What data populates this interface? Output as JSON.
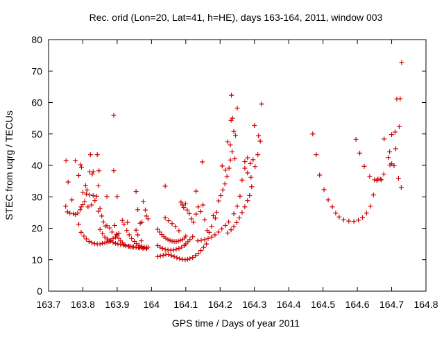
{
  "chart_data": {
    "type": "scatter",
    "title": "Rec. orid (Lon=20, Lat=41, h=HE), days 163-164, 2011, window 003",
    "xlabel": "GPS time / Days of year 2011",
    "ylabel": "STEC from uqrg / TECUs",
    "xlim": [
      163.7,
      164.8
    ],
    "ylim": [
      0,
      80
    ],
    "xticks": [
      163.7,
      163.8,
      163.9,
      164.0,
      164.1,
      164.2,
      164.3,
      164.4,
      164.5,
      164.6,
      164.7,
      164.8
    ],
    "xtick_labels": [
      "163.7",
      "163.8",
      "163.9",
      "164",
      "164.1",
      "164.2",
      "164.3",
      "164.4",
      "164.5",
      "164.6",
      "164.7",
      "164.8"
    ],
    "yticks": [
      0,
      10,
      20,
      30,
      40,
      50,
      60,
      70,
      80
    ],
    "ytick_labels": [
      "0",
      "10",
      "20",
      "30",
      "40",
      "50",
      "60",
      "70",
      "80"
    ],
    "grid": false,
    "legend": "none",
    "marker": "plus",
    "series": [
      {
        "color": "#cc0000",
        "points": [
          [
            163.751,
            41.5
          ],
          [
            163.757,
            34.7
          ],
          [
            163.768,
            29.0
          ],
          [
            163.778,
            41.5
          ],
          [
            163.788,
            36.8
          ],
          [
            163.793,
            40.2
          ],
          [
            163.796,
            39.4
          ],
          [
            163.8,
            31.4
          ],
          [
            163.808,
            33.6
          ],
          [
            163.812,
            32.2
          ],
          [
            163.82,
            38.0
          ],
          [
            163.822,
            43.4
          ],
          [
            163.827,
            37.2
          ],
          [
            163.83,
            38.0
          ],
          [
            163.842,
            43.4
          ],
          [
            163.845,
            33.5
          ],
          [
            163.847,
            38.3
          ],
          [
            163.87,
            30.1
          ],
          [
            163.9,
            30.1
          ],
          [
            163.89,
            55.9
          ],
          [
            163.89,
            38.3
          ],
          [
            163.75,
            27.0
          ],
          [
            163.755,
            25.2
          ],
          [
            163.762,
            24.8
          ],
          [
            163.772,
            24.6
          ],
          [
            163.778,
            24.4
          ],
          [
            163.785,
            24.8
          ],
          [
            163.792,
            25.9
          ],
          [
            163.795,
            26.8
          ],
          [
            163.8,
            27.5
          ],
          [
            163.805,
            28.5
          ],
          [
            163.81,
            30.9
          ],
          [
            163.815,
            26.8
          ],
          [
            163.82,
            30.6
          ],
          [
            163.825,
            27.4
          ],
          [
            163.83,
            30.4
          ],
          [
            163.835,
            28.8
          ],
          [
            163.84,
            30.2
          ],
          [
            163.845,
            25.4
          ],
          [
            163.85,
            26.3
          ],
          [
            163.855,
            23.9
          ],
          [
            163.86,
            22.0
          ],
          [
            163.865,
            20.7
          ],
          [
            163.87,
            20.8
          ],
          [
            163.878,
            20.1
          ],
          [
            163.885,
            18.8
          ],
          [
            163.893,
            20.9
          ],
          [
            163.898,
            18.1
          ],
          [
            163.788,
            21.3
          ],
          [
            163.795,
            18.7
          ],
          [
            163.803,
            17.5
          ],
          [
            163.81,
            16.6
          ],
          [
            163.818,
            15.8
          ],
          [
            163.826,
            15.4
          ],
          [
            163.834,
            15.1
          ],
          [
            163.842,
            15.0
          ],
          [
            163.85,
            15.0
          ],
          [
            163.857,
            15.2
          ],
          [
            163.864,
            15.4
          ],
          [
            163.87,
            15.6
          ],
          [
            163.876,
            15.8
          ],
          [
            163.882,
            16.2
          ],
          [
            163.888,
            16.7
          ],
          [
            163.895,
            17.2
          ],
          [
            163.9,
            17.8
          ],
          [
            163.905,
            18.4
          ],
          [
            163.85,
            19.6
          ],
          [
            163.857,
            18.3
          ],
          [
            163.864,
            17.2
          ],
          [
            163.872,
            16.6
          ],
          [
            163.88,
            15.9
          ],
          [
            163.888,
            15.5
          ],
          [
            163.895,
            15.2
          ],
          [
            163.902,
            15.0
          ],
          [
            163.91,
            14.8
          ],
          [
            163.918,
            14.6
          ],
          [
            163.925,
            14.4
          ],
          [
            163.933,
            14.3
          ],
          [
            163.94,
            14.2
          ],
          [
            163.948,
            14.1
          ],
          [
            163.955,
            14.0
          ],
          [
            163.962,
            13.9
          ],
          [
            163.97,
            13.9
          ],
          [
            163.978,
            13.9
          ],
          [
            163.985,
            14.0
          ],
          [
            163.92,
            21.3
          ],
          [
            163.928,
            19.3
          ],
          [
            163.935,
            17.9
          ],
          [
            163.942,
            16.7
          ],
          [
            163.95,
            15.8
          ],
          [
            163.957,
            15.1
          ],
          [
            163.964,
            14.6
          ],
          [
            163.972,
            14.2
          ],
          [
            163.979,
            13.8
          ],
          [
            163.986,
            13.5
          ],
          [
            163.99,
            14.0
          ],
          [
            163.905,
            16.8
          ],
          [
            163.91,
            16.0
          ],
          [
            163.915,
            15.4
          ],
          [
            163.92,
            14.9
          ],
          [
            163.925,
            14.6
          ],
          [
            163.935,
            14.2
          ],
          [
            163.945,
            14.0
          ],
          [
            163.955,
            13.9
          ],
          [
            163.965,
            13.7
          ],
          [
            163.975,
            13.6
          ],
          [
            163.985,
            13.6
          ],
          [
            163.915,
            22.5
          ],
          [
            163.93,
            21.9
          ],
          [
            163.955,
            31.7
          ],
          [
            163.96,
            25.9
          ],
          [
            163.967,
            21.6
          ],
          [
            163.972,
            21.9
          ],
          [
            163.976,
            28.5
          ],
          [
            163.982,
            25.8
          ],
          [
            163.985,
            23.9
          ],
          [
            163.99,
            23.0
          ],
          [
            163.955,
            19.4
          ],
          [
            163.96,
            17.9
          ],
          [
            163.97,
            16.0
          ],
          [
            164.018,
            19.7
          ],
          [
            164.024,
            18.8
          ],
          [
            164.03,
            18.0
          ],
          [
            164.036,
            17.3
          ],
          [
            164.042,
            16.8
          ],
          [
            164.048,
            16.4
          ],
          [
            164.054,
            16.1
          ],
          [
            164.06,
            15.9
          ],
          [
            164.066,
            15.8
          ],
          [
            164.072,
            15.8
          ],
          [
            164.078,
            15.9
          ],
          [
            164.084,
            16.1
          ],
          [
            164.09,
            16.4
          ],
          [
            164.096,
            16.9
          ],
          [
            164.1,
            17.5
          ],
          [
            164.018,
            14.5
          ],
          [
            164.025,
            14.0
          ],
          [
            164.032,
            13.6
          ],
          [
            164.04,
            13.3
          ],
          [
            164.048,
            13.1
          ],
          [
            164.056,
            13.0
          ],
          [
            164.064,
            13.1
          ],
          [
            164.072,
            13.3
          ],
          [
            164.08,
            13.6
          ],
          [
            164.088,
            14.0
          ],
          [
            164.096,
            14.5
          ],
          [
            164.1,
            15.0
          ],
          [
            164.106,
            15.7
          ],
          [
            164.112,
            16.4
          ],
          [
            164.12,
            17.3
          ],
          [
            164.018,
            11.0
          ],
          [
            164.026,
            11.2
          ],
          [
            164.034,
            11.4
          ],
          [
            164.042,
            11.7
          ],
          [
            164.05,
            11.6
          ],
          [
            164.058,
            11.3
          ],
          [
            164.066,
            11.0
          ],
          [
            164.074,
            10.6
          ],
          [
            164.082,
            10.3
          ],
          [
            164.09,
            10.1
          ],
          [
            164.098,
            10.0
          ],
          [
            164.105,
            10.1
          ],
          [
            164.112,
            10.3
          ],
          [
            164.12,
            10.7
          ],
          [
            164.128,
            11.3
          ],
          [
            164.136,
            12.0
          ],
          [
            164.144,
            12.9
          ],
          [
            164.152,
            13.9
          ],
          [
            164.16,
            15.0
          ],
          [
            164.04,
            33.4
          ],
          [
            164.04,
            23.3
          ],
          [
            164.05,
            22.4
          ],
          [
            164.06,
            21.5
          ],
          [
            164.07,
            20.5
          ],
          [
            164.08,
            19.2
          ],
          [
            164.086,
            28.3
          ],
          [
            164.09,
            27.4
          ],
          [
            164.094,
            26.6
          ],
          [
            164.099,
            27.8
          ],
          [
            164.104,
            25.8
          ],
          [
            164.11,
            24.7
          ],
          [
            164.116,
            23.0
          ],
          [
            164.122,
            21.9
          ],
          [
            164.13,
            24.5
          ],
          [
            164.136,
            26.8
          ],
          [
            164.143,
            25.3
          ],
          [
            164.15,
            27.4
          ],
          [
            164.155,
            22.7
          ],
          [
            164.162,
            19.3
          ],
          [
            164.168,
            18.7
          ],
          [
            164.175,
            20.6
          ],
          [
            164.18,
            24.0
          ],
          [
            164.186,
            23.2
          ],
          [
            164.13,
            31.8
          ],
          [
            164.148,
            41.1
          ],
          [
            164.135,
            16.0
          ],
          [
            164.145,
            16.2
          ],
          [
            164.155,
            16.4
          ],
          [
            164.165,
            16.7
          ],
          [
            164.175,
            17.2
          ],
          [
            164.185,
            17.9
          ],
          [
            164.195,
            18.8
          ],
          [
            164.205,
            19.8
          ],
          [
            164.215,
            20.9
          ],
          [
            164.225,
            22.0
          ],
          [
            164.19,
            25.1
          ],
          [
            164.196,
            28.7
          ],
          [
            164.202,
            30.4
          ],
          [
            164.208,
            32.2
          ],
          [
            164.214,
            34.1
          ],
          [
            164.22,
            36.5
          ],
          [
            164.226,
            39.1
          ],
          [
            164.23,
            41.7
          ],
          [
            164.206,
            39.8
          ],
          [
            164.215,
            38.5
          ],
          [
            164.222,
            47.5
          ],
          [
            164.23,
            46.5
          ],
          [
            164.232,
            54.3
          ],
          [
            164.236,
            55.0
          ],
          [
            164.24,
            50.8
          ],
          [
            164.245,
            49.5
          ],
          [
            164.25,
            58.2
          ],
          [
            164.233,
            62.3
          ],
          [
            164.235,
            44.3
          ],
          [
            164.243,
            42.1
          ],
          [
            164.222,
            18.5
          ],
          [
            164.232,
            19.5
          ],
          [
            164.24,
            20.5
          ],
          [
            164.248,
            21.8
          ],
          [
            164.256,
            23.3
          ],
          [
            164.264,
            25.0
          ],
          [
            164.272,
            26.8
          ],
          [
            164.28,
            28.8
          ],
          [
            164.286,
            30.4
          ],
          [
            164.292,
            33.2
          ],
          [
            164.24,
            24.6
          ],
          [
            164.25,
            27.0
          ],
          [
            164.258,
            30.2
          ],
          [
            164.264,
            35.3
          ],
          [
            164.272,
            39.1
          ],
          [
            164.28,
            42.4
          ],
          [
            164.288,
            40.6
          ],
          [
            164.296,
            41.8
          ],
          [
            164.302,
            39.6
          ],
          [
            164.31,
            43.4
          ],
          [
            164.317,
            47.7
          ],
          [
            164.321,
            59.5
          ],
          [
            164.3,
            52.7
          ],
          [
            164.312,
            49.4
          ],
          [
            164.28,
            37.6
          ],
          [
            164.29,
            36.2
          ],
          [
            164.272,
            41.2
          ],
          [
            164.47,
            50.0
          ],
          [
            164.48,
            43.4
          ],
          [
            164.49,
            36.9
          ],
          [
            164.503,
            32.3
          ],
          [
            164.515,
            29.0
          ],
          [
            164.527,
            26.8
          ],
          [
            164.537,
            24.8
          ],
          [
            164.547,
            23.6
          ],
          [
            164.56,
            22.7
          ],
          [
            164.575,
            22.3
          ],
          [
            164.59,
            22.2
          ],
          [
            164.603,
            22.6
          ],
          [
            164.615,
            23.4
          ],
          [
            164.627,
            24.8
          ],
          [
            164.638,
            27.0
          ],
          [
            164.647,
            30.6
          ],
          [
            164.657,
            35.2
          ],
          [
            164.667,
            35.6
          ],
          [
            164.677,
            37.2
          ],
          [
            164.694,
            44.3
          ],
          [
            164.7,
            40.5
          ],
          [
            164.707,
            39.9
          ],
          [
            164.596,
            48.3
          ],
          [
            164.607,
            43.9
          ],
          [
            164.62,
            39.7
          ],
          [
            164.636,
            36.5
          ],
          [
            164.65,
            35.4
          ],
          [
            164.66,
            35.7
          ],
          [
            164.67,
            35.4
          ],
          [
            164.678,
            48.4
          ],
          [
            164.69,
            42.5
          ],
          [
            164.7,
            49.8
          ],
          [
            164.71,
            50.6
          ],
          [
            164.722,
            52.3
          ],
          [
            164.728,
            33.0
          ],
          [
            164.72,
            35.9
          ],
          [
            164.715,
            61.1
          ],
          [
            164.725,
            61.2
          ],
          [
            164.729,
            72.7
          ],
          [
            164.712,
            45.3
          ],
          [
            164.695,
            40.1
          ]
        ]
      }
    ]
  }
}
